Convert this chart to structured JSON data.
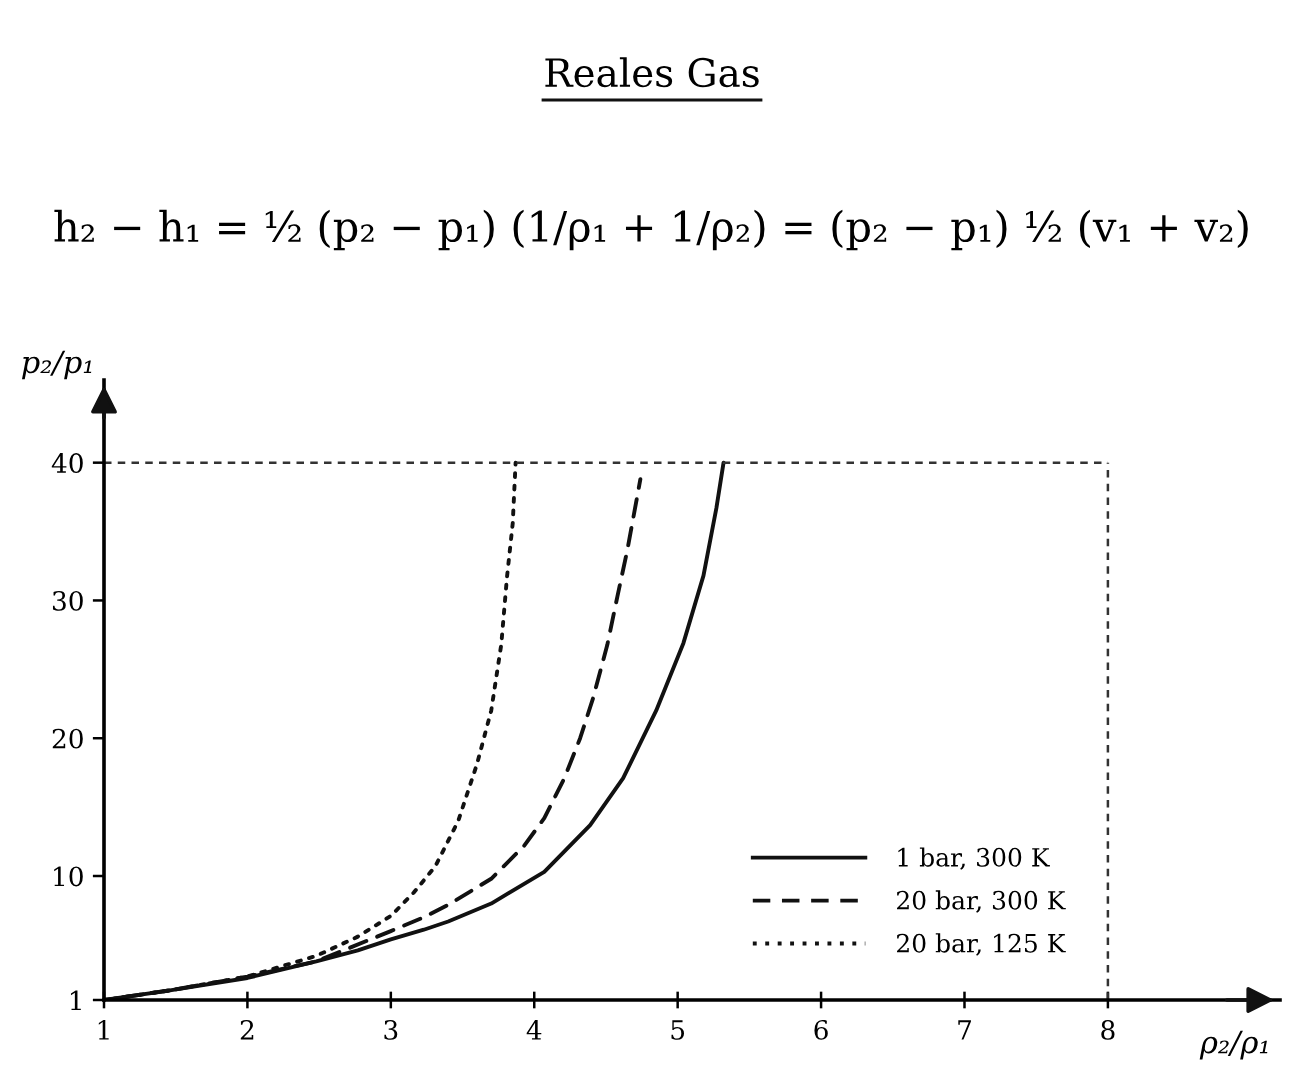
{
  "chart_data": {
    "type": "line",
    "title": "Reales Gas",
    "subtitle": "h₂ − h₁ = ½ (p₂ − p₁) (1/ρ₁ + 1/ρ₂) = (p₂ − p₁) ½ (v₁ + v₂)",
    "xlabel": "ρ₂/ρ₁",
    "ylabel": "p₂/p₁",
    "xlim": [
      1,
      9.2
    ],
    "ylim": [
      1,
      46
    ],
    "xticks": [
      1,
      2,
      3,
      4,
      5,
      6,
      7,
      8
    ],
    "yticks": [
      1,
      10,
      20,
      30,
      40
    ],
    "legend": "bottom right",
    "series": [
      {
        "name": "1 bar, 300 K",
        "color": "#111111",
        "line_style": "solid",
        "x": [
          1,
          1.46,
          2,
          2.48,
          2.77,
          3,
          3.23,
          3.4,
          3.7,
          4.07,
          4.39,
          4.62,
          4.85,
          5.04,
          5.18,
          5.27,
          5.32
        ],
        "values": [
          1,
          1.7,
          2.6,
          3.8,
          4.6,
          5.4,
          6.1,
          6.7,
          8.0,
          10.3,
          13.7,
          17.1,
          22.0,
          26.9,
          31.8,
          36.7,
          40
        ]
      },
      {
        "name": "20 bar, 300 K",
        "color": "#111111",
        "line_style": "dashed",
        "x": [
          1,
          1.46,
          2,
          2.48,
          3,
          3.23,
          3.4,
          3.7,
          3.93,
          4.07,
          4.21,
          4.32,
          4.41,
          4.51,
          4.58,
          4.65,
          4.71,
          4.74
        ],
        "values": [
          1,
          1.7,
          2.7,
          3.8,
          6.0,
          7.0,
          7.9,
          9.8,
          12.2,
          14.2,
          17.1,
          20.0,
          22.9,
          26.8,
          30.3,
          33.7,
          37.1,
          38.8
        ]
      },
      {
        "name": "20 bar, 125 K",
        "color": "#111111",
        "line_style": "dotted",
        "x": [
          1,
          1.46,
          2,
          2.48,
          2.77,
          3.0,
          3.16,
          3.31,
          3.47,
          3.6,
          3.7,
          3.77,
          3.81,
          3.85,
          3.87
        ],
        "values": [
          1,
          1.7,
          2.7,
          4.2,
          5.6,
          7.1,
          8.8,
          10.7,
          14.0,
          18.1,
          22.0,
          26.8,
          31.7,
          35.6,
          40
        ]
      }
    ],
    "ref_lines": [
      {
        "axis": "y",
        "value": 40,
        "color": "#333333",
        "line_style": "dashed"
      },
      {
        "axis": "x",
        "value": 8,
        "color": "#333333",
        "line_style": "dashed"
      }
    ]
  }
}
